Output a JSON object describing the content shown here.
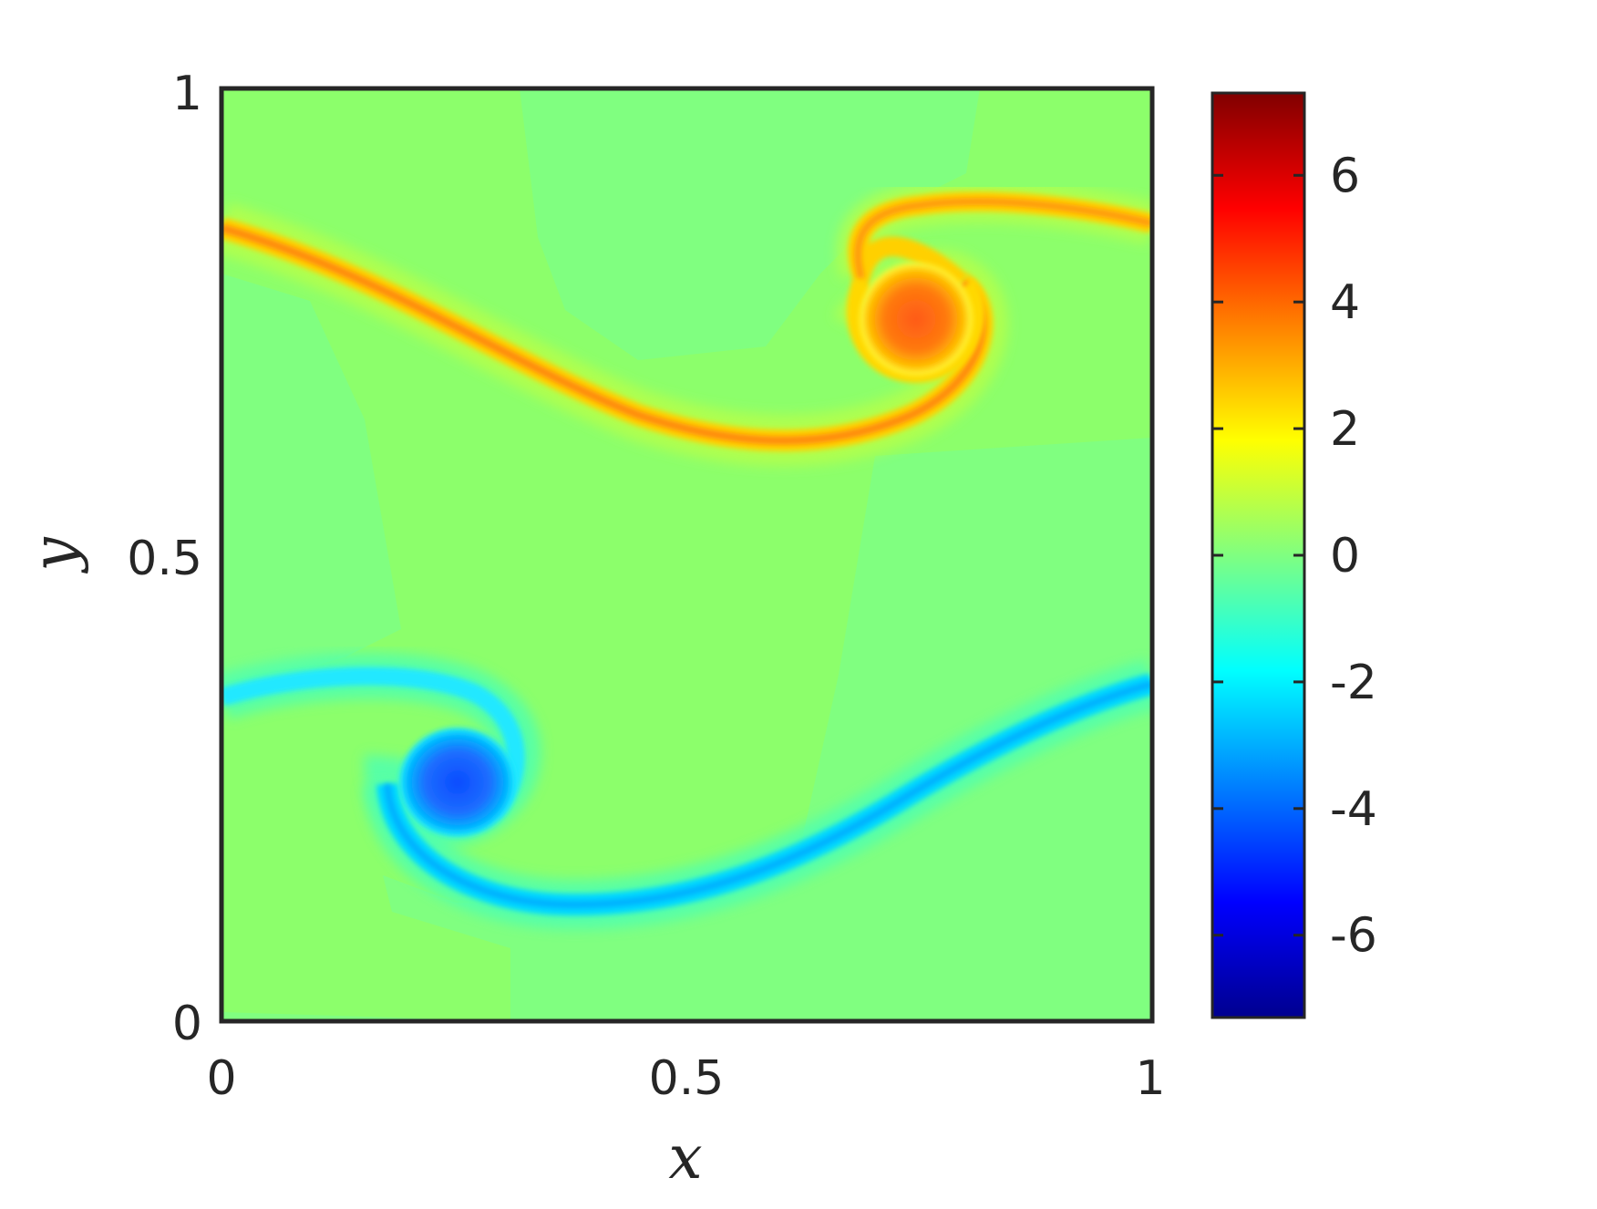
{
  "chart_data": {
    "type": "heatmap",
    "title": "",
    "xlabel": "x",
    "ylabel": "y",
    "xlim": [
      0,
      1
    ],
    "ylim": [
      0,
      1
    ],
    "xticks": [
      0,
      0.5,
      1
    ],
    "xtick_labels": [
      "0",
      "0.5",
      "1"
    ],
    "yticks": [
      0,
      0.5,
      1
    ],
    "ytick_labels": [
      "0",
      "0.5",
      "1"
    ],
    "colormap": "jet",
    "clim": [
      -7.3,
      7.3
    ],
    "colorbar": {
      "ticks": [
        6,
        4,
        2,
        0,
        -2,
        -4,
        -6
      ],
      "tick_labels": [
        "6",
        "4",
        "2",
        "0",
        "-2",
        "-4",
        "-6"
      ]
    },
    "features": [
      {
        "name": "positive vortex",
        "center": [
          0.75,
          0.75
        ],
        "peak": 4.5
      },
      {
        "name": "negative vortex",
        "center": [
          0.25,
          0.25
        ],
        "peak": -4.5
      }
    ],
    "background_level": 0,
    "grid": false
  },
  "colors": {
    "axis": "#262626",
    "background_field": "#8cff6b",
    "background_field_dark": "#80ff80"
  }
}
